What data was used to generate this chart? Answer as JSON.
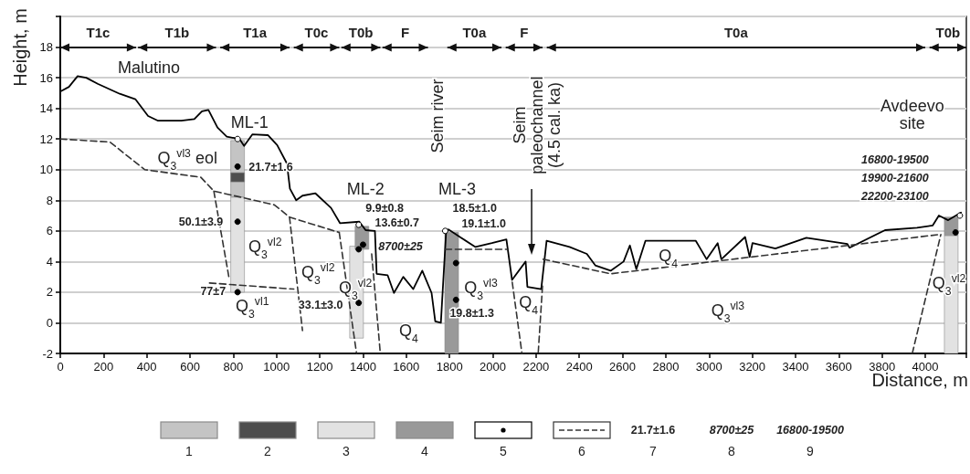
{
  "chart_data": {
    "type": "line",
    "xlabel": "Distance, m",
    "ylabel": "Height, m",
    "xlim": [
      0,
      4190
    ],
    "ylim": [
      -2,
      20
    ],
    "xticks": [
      0,
      200,
      400,
      600,
      800,
      1000,
      1200,
      1400,
      1600,
      1800,
      2000,
      2200,
      2400,
      2600,
      2800,
      3000,
      3200,
      3400,
      3600,
      3800,
      4000
    ],
    "yticks": [
      -2,
      0,
      2,
      4,
      6,
      8,
      10,
      12,
      14,
      16,
      18
    ],
    "grid": "y",
    "legend": "bottom",
    "series": [
      {
        "color": "#000000",
        "x": [
          0,
          40,
          80,
          120,
          173,
          275,
          347,
          406,
          450,
          560,
          620,
          655,
          685,
          727,
          770,
          829,
          850,
          888,
          960,
          1003,
          1048,
          1062,
          1091,
          1120,
          1180,
          1252,
          1294,
          1383,
          1412,
          1455,
          1463,
          1514,
          1543,
          1586,
          1632,
          1674,
          1717,
          1734,
          1760,
          1784,
          1795,
          1848,
          1920,
          1996,
          2063,
          2089,
          2152,
          2160,
          2224,
          2249,
          2355,
          2435,
          2474,
          2545,
          2605,
          2634,
          2664,
          2706,
          2939,
          2989,
          3040,
          3057,
          3167,
          3188,
          3201,
          3307,
          3450,
          3640,
          3650,
          3814,
          3962,
          4034,
          4063,
          4106,
          4165
        ],
        "values": [
          15.1,
          15.4,
          16.1,
          16.0,
          15.6,
          14.95,
          14.6,
          13.5,
          13.2,
          13.2,
          13.3,
          13.8,
          13.9,
          12.75,
          12.15,
          12.0,
          11.55,
          12.3,
          12.25,
          11.6,
          10.4,
          8.75,
          8.0,
          8.3,
          8.45,
          7.5,
          6.5,
          6.6,
          6.05,
          6.0,
          3.2,
          3.1,
          1.95,
          3.0,
          2.2,
          3.4,
          1.95,
          0.1,
          0,
          5.9,
          6.1,
          5.6,
          4.95,
          5.2,
          5.45,
          2.8,
          4.0,
          2.35,
          2.2,
          5.35,
          4.95,
          4.5,
          3.75,
          3.4,
          4.0,
          5.05,
          3.5,
          5.35,
          5.35,
          4.15,
          5.2,
          4.15,
          5.6,
          4.3,
          5.2,
          4.85,
          5.55,
          5.15,
          4.9,
          6.05,
          6.2,
          6.35,
          7.0,
          6.7,
          7.2
        ]
      },
      {
        "type": "bar",
        "name": "1",
        "color": "#c4c4c4",
        "x": [
          820
        ],
        "base": [
          8.2
        ],
        "values": [
          3.7
        ]
      },
      {
        "type": "bar",
        "name": "2",
        "color": "#4d4d4d",
        "x": [
          820
        ],
        "base": [
          9.2
        ],
        "values": [
          0.6
        ]
      },
      {
        "type": "bar",
        "name": "3",
        "color": "#e2e2e2",
        "x": [
          820,
          1370,
          4120
        ],
        "base": [
          2,
          -1,
          -2
        ],
        "values": [
          6.2,
          6,
          7.7
        ]
      },
      {
        "type": "bar",
        "name": "4",
        "color": "#999999",
        "x": [
          1395,
          1810,
          4120
        ],
        "base": [
          4.8,
          -2,
          5.7
        ],
        "values": [
          1.5,
          7.9,
          1.2
        ]
      },
      {
        "type": "scatter",
        "name": "5",
        "color": "#000000",
        "marker": "circle",
        "x": [
          820,
          820,
          820,
          1380,
          1400,
          1380,
          1830,
          1830,
          4140
        ],
        "values": [
          10.2,
          6.6,
          2.0,
          4.8,
          5.1,
          1.3,
          3.9,
          1.5,
          5.9
        ]
      },
      {
        "type": "line",
        "name": "6",
        "color": "#333333",
        "line_style": "dashed",
        "x": [
          0,
          230,
          390,
          650,
          710,
          990,
          1060,
          1290
        ],
        "values": [
          12,
          11.8,
          10,
          9.5,
          8.6,
          7.7,
          6.9,
          5.9
        ]
      },
      {
        "type": "line",
        "color": "#333333",
        "line_style": "dashed",
        "x": [
          710,
          782
        ],
        "values": [
          8.6,
          2.8
        ]
      },
      {
        "type": "line",
        "color": "#333333",
        "line_style": "dashed",
        "x": [
          690,
          1080
        ],
        "values": [
          2.6,
          2.2
        ]
      },
      {
        "type": "line",
        "color": "#333333",
        "line_style": "dashed",
        "x": [
          1060,
          1120
        ],
        "values": [
          6.9,
          -0.5
        ]
      },
      {
        "type": "line",
        "color": "#333333",
        "line_style": "dashed",
        "x": [
          1290,
          1370
        ],
        "values": [
          5.9,
          -2
        ]
      },
      {
        "type": "line",
        "color": "#333333",
        "line_style": "dashed",
        "x": [
          1440,
          1480
        ],
        "values": [
          4.5,
          -2
        ]
      },
      {
        "type": "line",
        "color": "#333333",
        "line_style": "dashed",
        "x": [
          1780,
          2070
        ],
        "values": [
          4.8,
          4.8
        ]
      },
      {
        "type": "line",
        "color": "#333333",
        "line_style": "dashed",
        "x": [
          2090,
          2135
        ],
        "values": [
          2.65,
          -2
        ]
      },
      {
        "type": "line",
        "color": "#333333",
        "line_style": "dashed",
        "x": [
          2230,
          2210
        ],
        "values": [
          2.4,
          -2
        ]
      },
      {
        "type": "line",
        "color": "#333333",
        "line_style": "dashed",
        "x": [
          2233,
          2545,
          2664,
          4063
        ],
        "values": [
          4.15,
          3.2,
          3.4,
          5.76
        ]
      },
      {
        "type": "line",
        "color": "#333333",
        "line_style": "dashed",
        "x": [
          3940,
          4072
        ],
        "values": [
          -2,
          5.76
        ]
      },
      {
        "type": "scatter",
        "color": "#ffffff",
        "marker": "circle",
        "x": [
          820,
          1380,
          1780,
          4160
        ],
        "values": [
          12.0,
          6.4,
          6.0,
          7.0
        ]
      }
    ],
    "annotations": [
      "T1c",
      "T1b",
      "T1a",
      "T0c",
      "T0b",
      "F",
      "T0a",
      "F",
      "T0a",
      "T0b",
      "Malutino",
      "ML-1",
      "ML-2",
      "ML-3",
      "Seim river",
      "Seim\npaleochannel\n(4.5 cal. ka)",
      "Avdeevo\nsite",
      "16800-19500",
      "19900-21600",
      "22200-23100",
      "21.7±1.6",
      "50.1±3.9",
      "77±7",
      "9.9±0.8",
      "13.6±0.7",
      "8700±25",
      "33.1±3.0",
      "18.5±1.0",
      "19.1±1.0",
      "19.8±1.3",
      "Q$_{3}$$^{vl3}$ eol",
      "Q$_{3}$$^{vl2}$",
      "Q$_{3}$$^{vl1}$",
      "Q$_{3}$$^{vl2}$",
      "Q$_{3}$$^{vl2}$",
      "Q$_{4}$",
      "Q$_{3}$$^{vl3}$",
      "Q$_{4}$",
      "Q$_{4}$",
      "Q$_{3}$$^{vl3}$",
      "Q$_{3}$$^{vl2}$",
      "21.7±1.6",
      "7",
      "8700±25",
      "8",
      "16800-19500",
      "9"
    ]
  }
}
